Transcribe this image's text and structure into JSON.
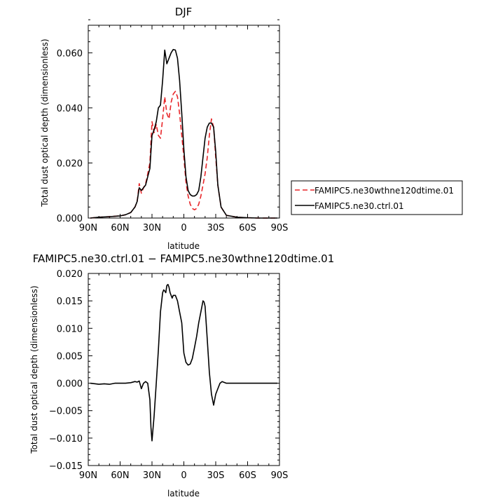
{
  "chart_data": [
    {
      "type": "line",
      "title": "DJF",
      "xlabel": "latitude",
      "ylabel": "Total dust optical depth (dimensionless)",
      "xlim": [
        90,
        -90
      ],
      "ylim": [
        0,
        0.07
      ],
      "x_ticks": [
        90,
        60,
        30,
        0,
        -30,
        -60,
        -90
      ],
      "x_tick_labels": [
        "90N",
        "60N",
        "30N",
        "0",
        "30S",
        "60S",
        "90S"
      ],
      "y_ticks": [
        0.0,
        0.02,
        0.04,
        0.06
      ],
      "y_tick_labels": [
        "0.000",
        "0.020",
        "0.040",
        "0.060"
      ],
      "grid": false,
      "legend_position": "right",
      "series": [
        {
          "name": "FAMIPC5.ne30wthne120dtime.01",
          "color": "#e8262a",
          "dash": "dashed",
          "x": [
            88,
            80,
            70,
            60,
            55,
            50,
            46,
            44,
            42,
            40,
            38,
            36,
            34,
            32,
            30,
            28,
            26,
            24,
            22,
            20,
            18,
            16,
            14,
            12,
            10,
            8,
            6,
            4,
            2,
            0,
            -2,
            -4,
            -6,
            -8,
            -10,
            -12,
            -14,
            -16,
            -18,
            -20,
            -22,
            -24,
            -26,
            -28,
            -30,
            -32,
            -35,
            -40,
            -50,
            -60,
            -70,
            -80,
            -88
          ],
          "y": [
            0.0,
            0.0003,
            0.0005,
            0.0008,
            0.0012,
            0.002,
            0.004,
            0.006,
            0.0125,
            0.009,
            0.011,
            0.0125,
            0.016,
            0.02,
            0.035,
            0.031,
            0.034,
            0.03,
            0.029,
            0.036,
            0.044,
            0.038,
            0.036,
            0.042,
            0.045,
            0.046,
            0.044,
            0.038,
            0.03,
            0.022,
            0.013,
            0.008,
            0.005,
            0.0035,
            0.003,
            0.0035,
            0.005,
            0.008,
            0.012,
            0.016,
            0.022,
            0.03,
            0.036,
            0.033,
            0.022,
            0.012,
            0.004,
            0.001,
            0.0003,
            0.0001,
            0.0,
            0.0,
            0.0
          ]
        },
        {
          "name": "FAMIPC5.ne30.ctrl.01",
          "color": "#000000",
          "dash": "solid",
          "x": [
            88,
            80,
            70,
            60,
            55,
            50,
            46,
            44,
            42,
            40,
            38,
            36,
            34,
            32,
            30,
            28,
            26,
            24,
            22,
            20,
            18,
            16,
            14,
            12,
            10,
            8,
            6,
            4,
            2,
            0,
            -2,
            -4,
            -6,
            -8,
            -10,
            -12,
            -14,
            -16,
            -18,
            -20,
            -22,
            -24,
            -26,
            -28,
            -30,
            -32,
            -35,
            -40,
            -50,
            -60,
            -70,
            -80,
            -88
          ],
          "y": [
            0.0,
            0.0003,
            0.0005,
            0.0008,
            0.0012,
            0.002,
            0.004,
            0.006,
            0.011,
            0.01,
            0.011,
            0.012,
            0.015,
            0.018,
            0.03,
            0.032,
            0.035,
            0.04,
            0.041,
            0.05,
            0.061,
            0.056,
            0.058,
            0.06,
            0.0612,
            0.061,
            0.058,
            0.05,
            0.038,
            0.025,
            0.015,
            0.01,
            0.0085,
            0.008,
            0.008,
            0.0085,
            0.01,
            0.015,
            0.022,
            0.029,
            0.033,
            0.0345,
            0.0345,
            0.033,
            0.024,
            0.012,
            0.004,
            0.001,
            0.0003,
            0.0001,
            0.0,
            0.0,
            0.0
          ]
        }
      ]
    },
    {
      "type": "line",
      "title": "FAMIPC5.ne30.ctrl.01 − FAMIPC5.ne30wthne120dtime.01",
      "xlabel": "latitude",
      "ylabel": "Total dust optical depth (dimensionless)",
      "xlim": [
        90,
        -90
      ],
      "ylim": [
        -0.015,
        0.02
      ],
      "x_ticks": [
        90,
        60,
        30,
        0,
        -30,
        -60,
        -90
      ],
      "x_tick_labels": [
        "90N",
        "60N",
        "30N",
        "0",
        "30S",
        "60S",
        "90S"
      ],
      "y_ticks": [
        -0.015,
        -0.01,
        -0.005,
        0.0,
        0.005,
        0.01,
        0.015,
        0.02
      ],
      "y_tick_labels": [
        "−0.015",
        "−0.010",
        "−0.005",
        "0.000",
        "0.005",
        "0.010",
        "0.015",
        "0.020"
      ],
      "grid": false,
      "series": [
        {
          "color": "#000000",
          "dash": "solid",
          "x": [
            88,
            80,
            75,
            70,
            65,
            60,
            55,
            50,
            46,
            44,
            42,
            40,
            38,
            36,
            34,
            32,
            31,
            30,
            28,
            26,
            24,
            22,
            20,
            19,
            18,
            17,
            16,
            15,
            14,
            13,
            12,
            11,
            10,
            8,
            6,
            4,
            2,
            0,
            -2,
            -4,
            -6,
            -8,
            -10,
            -12,
            -14,
            -16,
            -18,
            -19,
            -20,
            -22,
            -24,
            -26,
            -28,
            -30,
            -32,
            -34,
            -36,
            -40,
            -50,
            -60,
            -70,
            -80,
            -88
          ],
          "y": [
            0.0,
            -0.0002,
            -0.0001,
            -0.0002,
            0.0,
            0.0,
            0.0,
            0.0001,
            0.0003,
            0.0002,
            0.0004,
            -0.001,
            0.0,
            0.0003,
            0.0,
            -0.003,
            -0.008,
            -0.0105,
            -0.006,
            0.0,
            0.006,
            0.013,
            0.0165,
            0.017,
            0.0168,
            0.0165,
            0.0178,
            0.018,
            0.0175,
            0.0165,
            0.016,
            0.0155,
            0.016,
            0.016,
            0.015,
            0.013,
            0.011,
            0.0055,
            0.0038,
            0.0033,
            0.0035,
            0.0045,
            0.0065,
            0.0085,
            0.011,
            0.013,
            0.015,
            0.0148,
            0.014,
            0.008,
            0.002,
            -0.002,
            -0.004,
            -0.002,
            -0.001,
            0.0,
            0.0003,
            0.0,
            0.0,
            0.0,
            0.0,
            0.0,
            0.0
          ]
        }
      ]
    }
  ]
}
